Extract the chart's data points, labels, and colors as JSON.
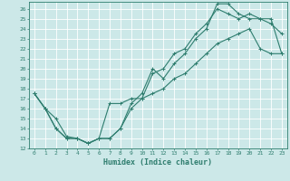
{
  "title": "",
  "xlabel": "Humidex (Indice chaleur)",
  "ylabel": "",
  "xlim": [
    -0.5,
    23.5
  ],
  "ylim": [
    12,
    26.7
  ],
  "yticks": [
    12,
    13,
    14,
    15,
    16,
    17,
    18,
    19,
    20,
    21,
    22,
    23,
    24,
    25,
    26
  ],
  "xticks": [
    0,
    1,
    2,
    3,
    4,
    5,
    6,
    7,
    8,
    9,
    10,
    11,
    12,
    13,
    14,
    15,
    16,
    17,
    18,
    19,
    20,
    21,
    22,
    23
  ],
  "line_color": "#2e7d6e",
  "bg_color": "#cce8e8",
  "grid_color": "#ffffff",
  "lines": [
    {
      "x": [
        0,
        1,
        2,
        3,
        4,
        5,
        6,
        7,
        8,
        9,
        10,
        11,
        12,
        13,
        14,
        15,
        16,
        17,
        18,
        19,
        20,
        21,
        22,
        23
      ],
      "y": [
        17.5,
        16.0,
        14.0,
        13.0,
        13.0,
        12.5,
        13.0,
        13.0,
        14.0,
        16.5,
        17.5,
        20.0,
        19.0,
        20.5,
        21.5,
        23.0,
        24.0,
        26.5,
        26.5,
        25.5,
        25.0,
        25.0,
        25.0,
        21.5
      ]
    },
    {
      "x": [
        0,
        1,
        2,
        3,
        4,
        5,
        6,
        7,
        8,
        9,
        10,
        11,
        12,
        13,
        14,
        15,
        16,
        17,
        18,
        19,
        20,
        21,
        22,
        23
      ],
      "y": [
        17.5,
        16.0,
        14.0,
        13.0,
        13.0,
        12.5,
        13.0,
        13.0,
        14.0,
        16.0,
        17.0,
        19.5,
        20.0,
        21.5,
        22.0,
        23.5,
        24.5,
        26.0,
        25.5,
        25.0,
        25.5,
        25.0,
        24.5,
        23.5
      ]
    },
    {
      "x": [
        0,
        1,
        2,
        3,
        4,
        5,
        6,
        7,
        8,
        9,
        10,
        11,
        12,
        13,
        14,
        15,
        16,
        17,
        18,
        19,
        20,
        21,
        22,
        23
      ],
      "y": [
        17.5,
        16.0,
        15.0,
        13.2,
        13.0,
        12.5,
        13.0,
        16.5,
        16.5,
        17.0,
        17.0,
        17.5,
        18.0,
        19.0,
        19.5,
        20.5,
        21.5,
        22.5,
        23.0,
        23.5,
        24.0,
        22.0,
        21.5,
        21.5
      ]
    }
  ]
}
